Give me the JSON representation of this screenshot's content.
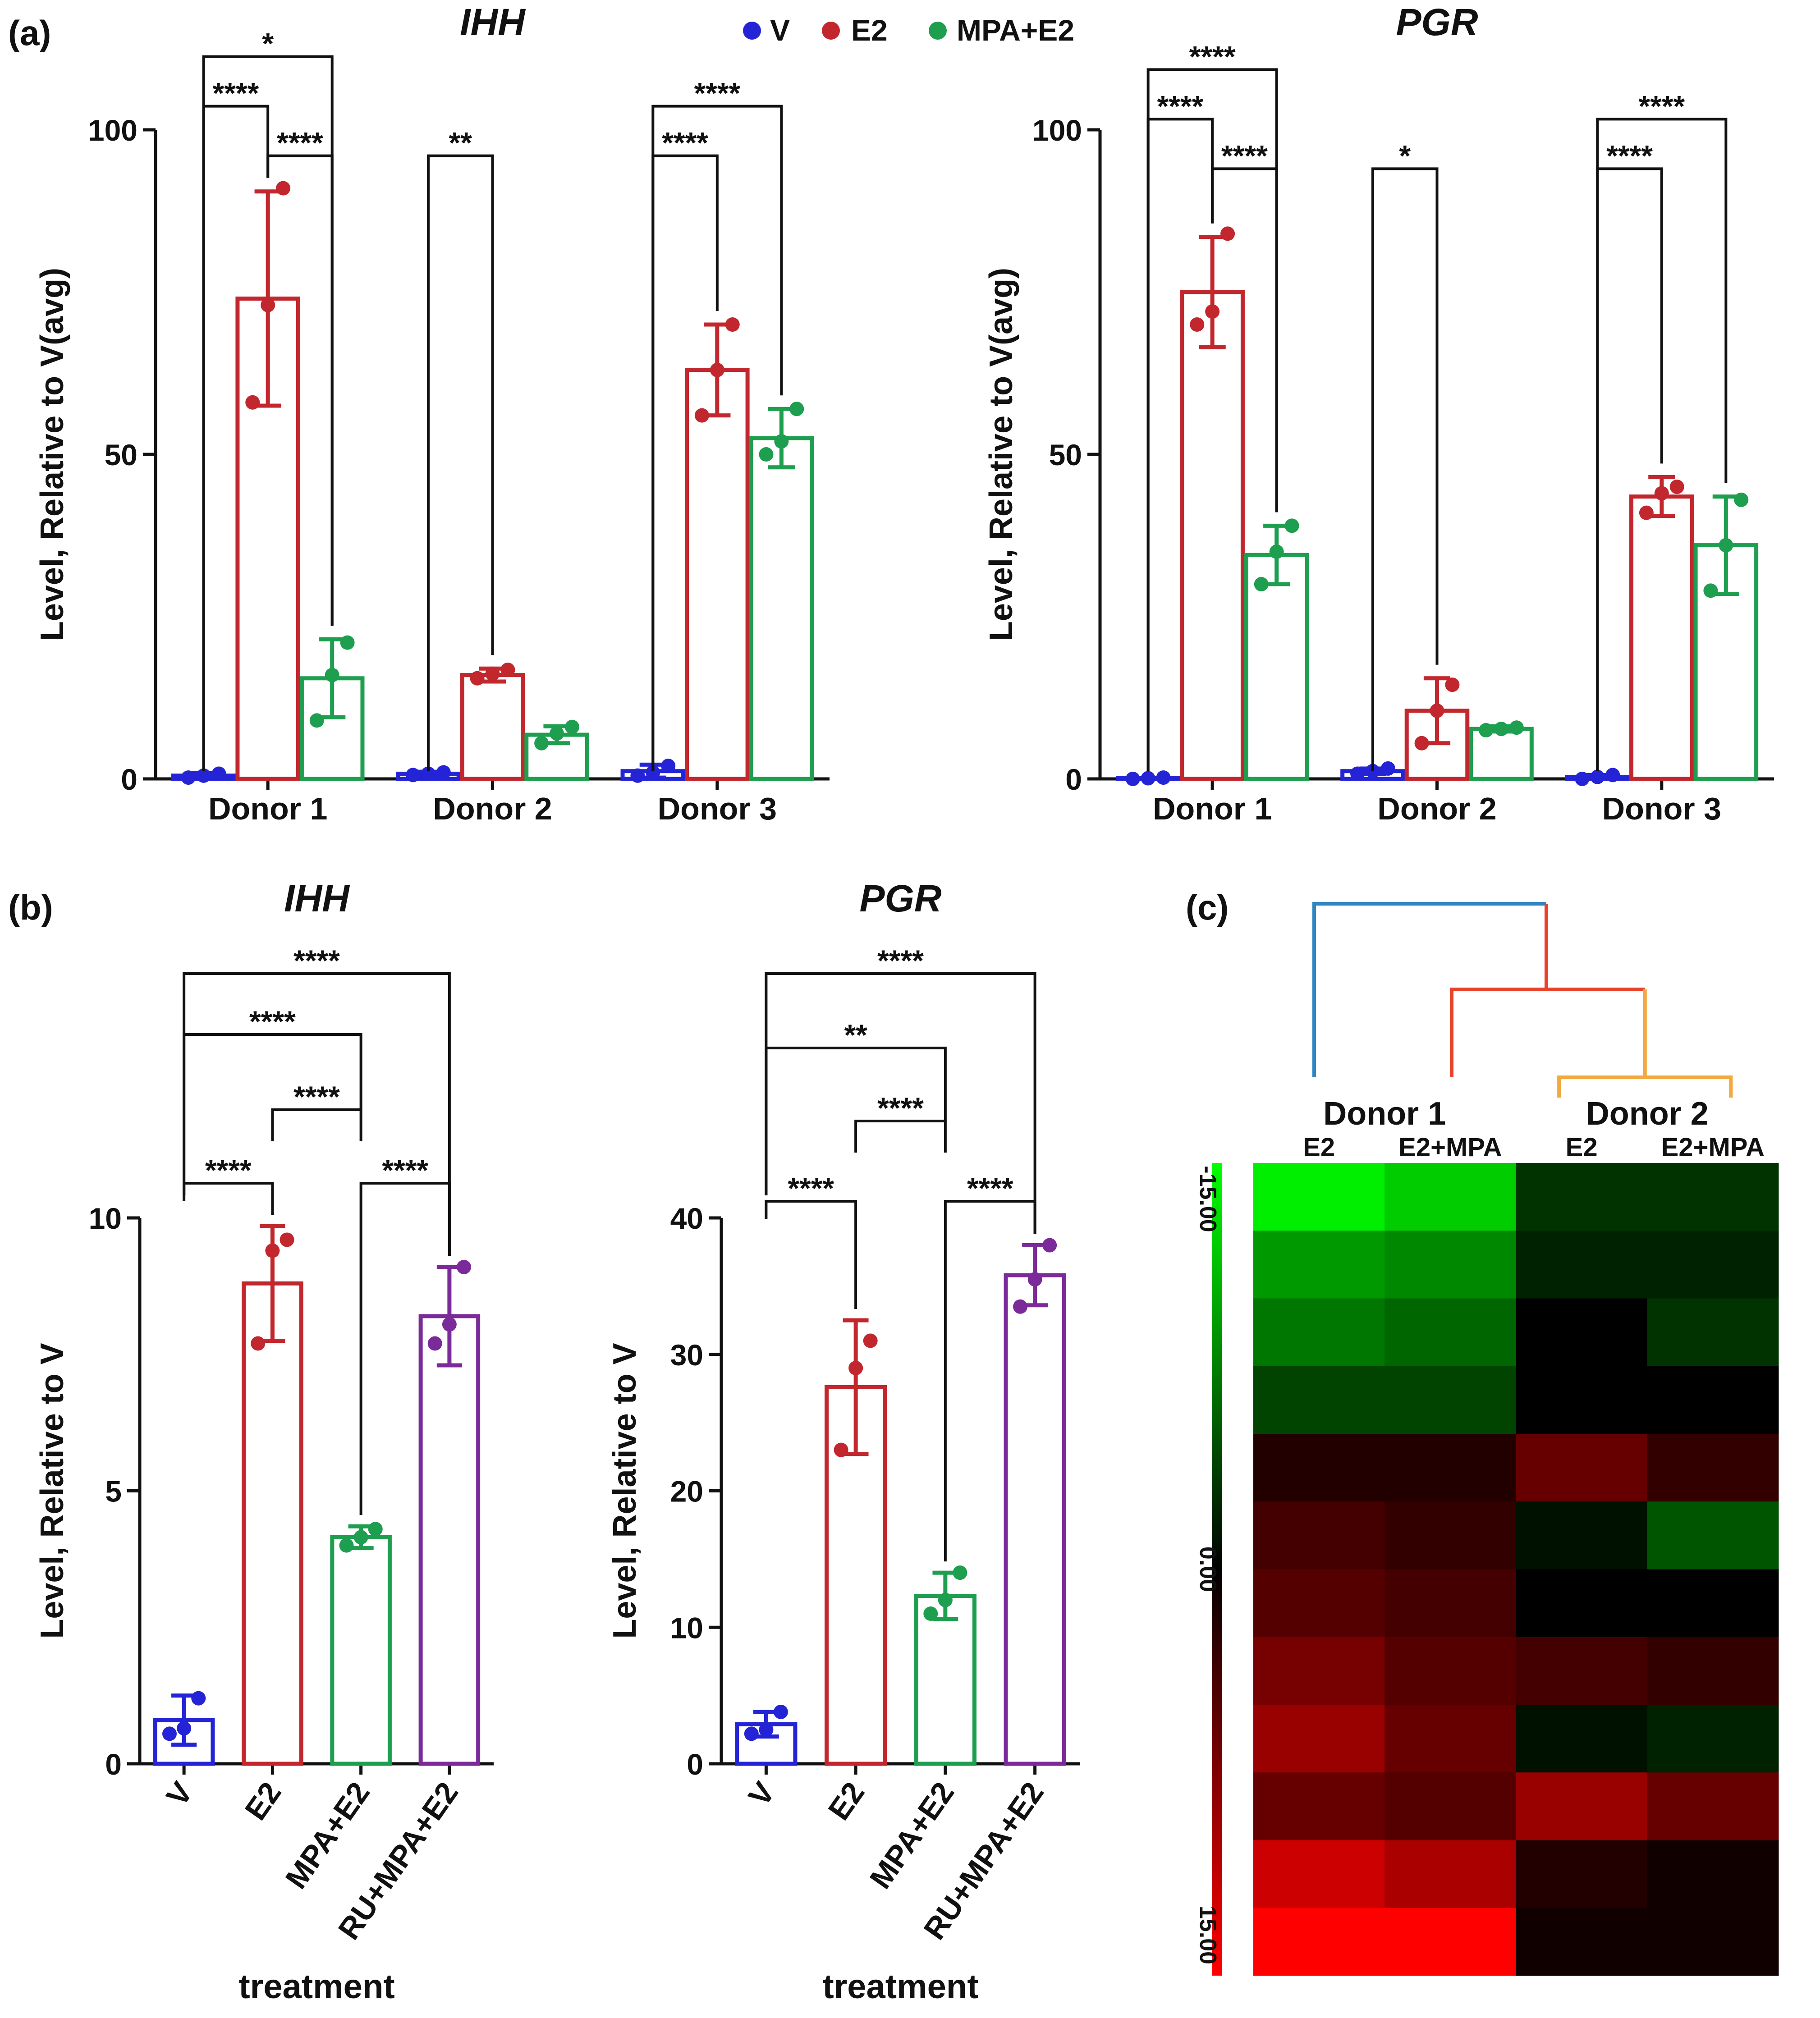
{
  "panel_labels": {
    "a": "(a)",
    "b": "(b)",
    "c": "(c)"
  },
  "legend": [
    {
      "label": "V",
      "color": "#2424d6"
    },
    {
      "label": "E2",
      "color": "#c1272d"
    },
    {
      "label": "MPA+E2",
      "color": "#1e9e4f"
    }
  ],
  "chart_data": [
    {
      "id": "a_ihh",
      "type": "bar",
      "title": "IHH",
      "ylabel": "Level, Relative to V(avg)",
      "xlabel": "",
      "ylim": [
        0,
        100
      ],
      "yticks": [
        "0",
        "50",
        "100"
      ],
      "categories": [
        "Donor 1",
        "Donor 2",
        "Donor 3"
      ],
      "series": [
        {
          "name": "V",
          "color": "#2424d6",
          "values": [
            0.5,
            0.8,
            1.2
          ],
          "errors": [
            0.4,
            0.3,
            1.0
          ],
          "points": [
            [
              0.2,
              0.5,
              0.8
            ],
            [
              0.6,
              0.8,
              1.0
            ],
            [
              0.5,
              1.0,
              2.0
            ]
          ]
        },
        {
          "name": "E2",
          "color": "#c1272d",
          "values": [
            74,
            16,
            63
          ],
          "errors": [
            16.5,
            1.0,
            7.0
          ],
          "points": [
            [
              58,
              73,
              91
            ],
            [
              15.5,
              16.2,
              16.8
            ],
            [
              56,
              63,
              70
            ]
          ]
        },
        {
          "name": "MPA+E2",
          "color": "#1e9e4f",
          "values": [
            15.5,
            6.8,
            52.5
          ],
          "errors": [
            6.0,
            1.3,
            4.5
          ],
          "points": [
            [
              9,
              16,
              21
            ],
            [
              5.5,
              7,
              8
            ],
            [
              50,
              52,
              57
            ]
          ]
        }
      ],
      "annotations": [
        {
          "group": 0,
          "from": 0,
          "to": 2,
          "label": "*"
        },
        {
          "group": 0,
          "from": 1,
          "to": 2,
          "label": "****"
        },
        {
          "group": 0,
          "from": 0,
          "to": 1,
          "label": "****"
        },
        {
          "group": 1,
          "from": 0,
          "to": 1,
          "label": "**"
        },
        {
          "group": 2,
          "from": 0,
          "to": 2,
          "label": "****"
        },
        {
          "group": 2,
          "from": 0,
          "to": 1,
          "label": "****"
        }
      ]
    },
    {
      "id": "a_pgr",
      "type": "bar",
      "title": "PGR",
      "ylabel": "Level, Relative to V(avg)",
      "xlabel": "",
      "ylim": [
        0,
        100
      ],
      "yticks": [
        "0",
        "50",
        "100"
      ],
      "categories": [
        "Donor 1",
        "Donor 2",
        "Donor 3"
      ],
      "series": [
        {
          "name": "V",
          "color": "#2424d6",
          "values": [
            0.1,
            1.2,
            0.3
          ],
          "errors": [
            0.05,
            0.4,
            0.3
          ],
          "points": [
            [
              0,
              0.1,
              0.2
            ],
            [
              0.8,
              1.2,
              1.6
            ],
            [
              0,
              0.3,
              0.6
            ]
          ]
        },
        {
          "name": "E2",
          "color": "#c1272d",
          "values": [
            75,
            10.5,
            43.5
          ],
          "errors": [
            8.5,
            5.0,
            3.0
          ],
          "points": [
            [
              70,
              72,
              84
            ],
            [
              5.5,
              10.5,
              14.5
            ],
            [
              41,
              44,
              45
            ]
          ]
        },
        {
          "name": "MPA+E2",
          "color": "#1e9e4f",
          "values": [
            34.5,
            7.7,
            36
          ],
          "errors": [
            4.5,
            0.4,
            7.5
          ],
          "points": [
            [
              30,
              35,
              39
            ],
            [
              7.5,
              7.7,
              7.9
            ],
            [
              29,
              36,
              43
            ]
          ]
        }
      ],
      "annotations": [
        {
          "group": 0,
          "from": 0,
          "to": 2,
          "label": "****"
        },
        {
          "group": 0,
          "from": 1,
          "to": 2,
          "label": "****"
        },
        {
          "group": 0,
          "from": 0,
          "to": 1,
          "label": "****"
        },
        {
          "group": 1,
          "from": 0,
          "to": 1,
          "label": "*"
        },
        {
          "group": 2,
          "from": 0,
          "to": 2,
          "label": "****"
        },
        {
          "group": 2,
          "from": 0,
          "to": 1,
          "label": "****"
        }
      ]
    },
    {
      "id": "b_ihh",
      "type": "bar",
      "title": "IHH",
      "ylabel": "Level, Relative to V",
      "xlabel": "treatment",
      "ylim": [
        0,
        10
      ],
      "yticks": [
        "0",
        "5",
        "10"
      ],
      "categories": [
        "V",
        "E2",
        "MPA+E2",
        "RU+MPA+E2"
      ],
      "colors": [
        "#2424d6",
        "#c1272d",
        "#1e9e4f",
        "#7b2a99"
      ],
      "values": [
        0.8,
        8.8,
        4.15,
        8.2
      ],
      "errors": [
        0.45,
        1.05,
        0.2,
        0.9
      ],
      "points": [
        [
          0.55,
          0.65,
          1.2
        ],
        [
          7.7,
          9.4,
          9.6
        ],
        [
          4.0,
          4.15,
          4.3
        ],
        [
          7.7,
          8.05,
          9.1
        ]
      ],
      "annotations": [
        {
          "from": 0,
          "to": 3,
          "label": "****"
        },
        {
          "from": 0,
          "to": 2,
          "label": "****"
        },
        {
          "from": 1,
          "to": 2,
          "label": "****"
        },
        {
          "from": 0,
          "to": 1,
          "label": "****"
        },
        {
          "from": 2,
          "to": 3,
          "label": "****"
        }
      ]
    },
    {
      "id": "b_pgr",
      "type": "bar",
      "title": "PGR",
      "ylabel": "Level, Relative to V",
      "xlabel": "treatment",
      "ylim": [
        0,
        40
      ],
      "yticks": [
        "0",
        "10",
        "20",
        "30",
        "40"
      ],
      "categories": [
        "V",
        "E2",
        "MPA+E2",
        "RU+MPA+E2"
      ],
      "colors": [
        "#2424d6",
        "#c1272d",
        "#1e9e4f",
        "#7b2a99"
      ],
      "values": [
        2.9,
        27.6,
        12.3,
        35.8
      ],
      "errors": [
        0.9,
        4.9,
        1.7,
        2.2
      ],
      "points": [
        [
          2.2,
          2.5,
          3.8
        ],
        [
          23,
          29,
          31
        ],
        [
          11,
          12,
          14
        ],
        [
          33.5,
          35.5,
          38
        ]
      ],
      "annotations": [
        {
          "from": 0,
          "to": 3,
          "label": "****"
        },
        {
          "from": 0,
          "to": 2,
          "label": "**"
        },
        {
          "from": 1,
          "to": 2,
          "label": "****"
        },
        {
          "from": 0,
          "to": 1,
          "label": "****"
        },
        {
          "from": 2,
          "to": 3,
          "label": "****"
        }
      ]
    },
    {
      "id": "c_heatmap",
      "type": "heatmap",
      "groups": [
        "Donor 1",
        "Donor 2"
      ],
      "columns": [
        "E2",
        "E2+MPA",
        "E2",
        "E2+MPA"
      ],
      "scale_labels": [
        "-15.00",
        "0.00",
        "15.00"
      ],
      "scale_range": [
        -15,
        15
      ],
      "colors": {
        "low": "#00ff00",
        "mid": "#000000",
        "high": "#ff0000"
      },
      "dendrogram_colors": [
        "#2f86c0",
        "#e8432a",
        "#f2a940"
      ],
      "row_bands": [
        [
          -14,
          -12,
          -3,
          -3
        ],
        [
          -9,
          -8,
          -2,
          -2
        ],
        [
          -7,
          -6,
          0,
          -3
        ],
        [
          -4,
          -4,
          0,
          0
        ],
        [
          2,
          2,
          6,
          3
        ],
        [
          4,
          3,
          -1,
          -5
        ],
        [
          5,
          4,
          0,
          0
        ],
        [
          7,
          5,
          4,
          3
        ],
        [
          9,
          6,
          -1,
          -2
        ],
        [
          6,
          5,
          9,
          6
        ],
        [
          12,
          10,
          2,
          1
        ],
        [
          15,
          15,
          1,
          1
        ]
      ]
    }
  ]
}
